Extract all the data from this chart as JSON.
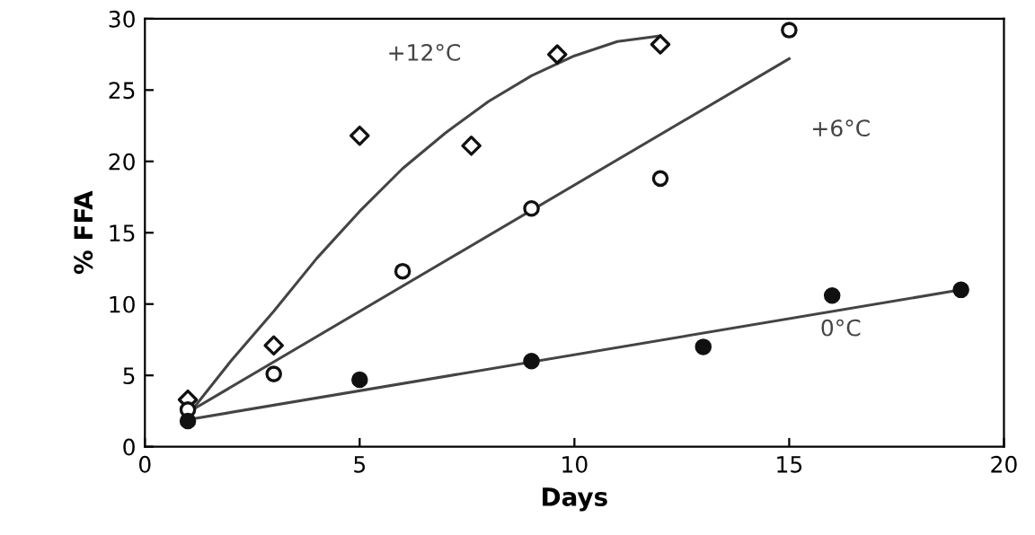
{
  "chart_data": {
    "type": "scatter",
    "xlabel": "Days",
    "ylabel": "% FFA",
    "xlim": [
      0,
      20
    ],
    "ylim": [
      0,
      30
    ],
    "xticks": [
      0,
      5,
      10,
      15,
      20
    ],
    "yticks": [
      0,
      5,
      10,
      15,
      20,
      25,
      30
    ],
    "grid": false,
    "legend": false,
    "series": [
      {
        "marker": "diamond",
        "color": "#ffffff",
        "x": [
          1,
          3,
          5,
          7.6,
          9.6,
          12
        ],
        "values": [
          3.3,
          7.1,
          21.8,
          21.1,
          27.5,
          28.2
        ]
      },
      {
        "marker": "circle",
        "color": "#ffffff",
        "x": [
          1,
          3,
          6,
          9,
          12,
          15
        ],
        "values": [
          2.6,
          5.1,
          12.3,
          16.7,
          18.8,
          29.2
        ]
      },
      {
        "marker": "circle",
        "color": "#111111",
        "x": [
          1,
          5,
          9,
          13,
          16,
          19
        ],
        "values": [
          1.8,
          4.7,
          6,
          7,
          10.6,
          11
        ]
      },
      {
        "type": "line",
        "name": "+12°C",
        "color": "#444444",
        "x": [
          1,
          2,
          3,
          4,
          5,
          6,
          7,
          8,
          9,
          10,
          11,
          12
        ],
        "values": [
          2.2,
          6,
          9.5,
          13.2,
          16.5,
          19.5,
          22,
          24.2,
          26,
          27.4,
          28.4,
          28.8
        ]
      },
      {
        "type": "line",
        "name": "+6°C",
        "color": "#444444",
        "x": [
          1,
          15
        ],
        "values": [
          2.4,
          27.2
        ]
      },
      {
        "type": "line",
        "name": "0°C",
        "color": "#444444",
        "x": [
          1,
          19
        ],
        "values": [
          1.9,
          11
        ]
      }
    ]
  }
}
